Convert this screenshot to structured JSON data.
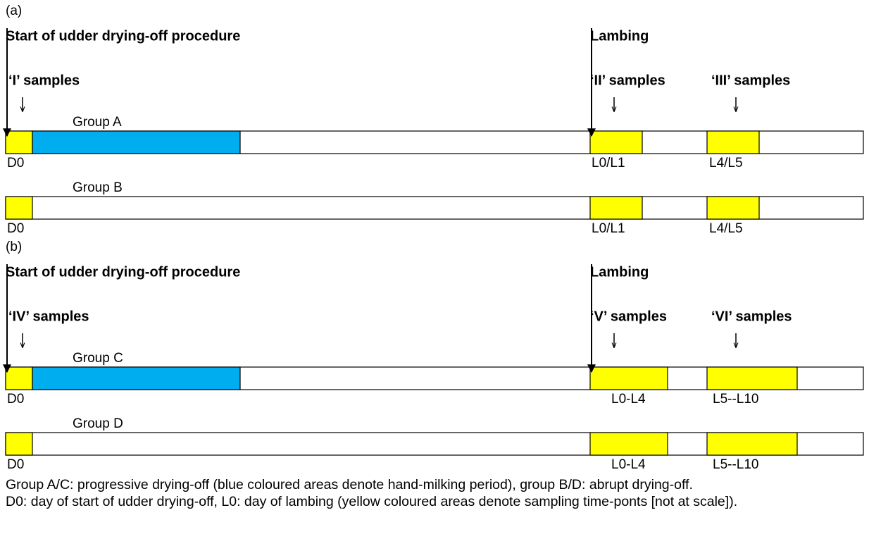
{
  "panels": [
    {
      "label": "(a)",
      "start_label": "Start of udder drying-off procedure",
      "lambing_label": "Lambing",
      "sample_labels": [
        "‘I’ samples",
        "‘II’ samples",
        "‘III’ samples"
      ],
      "groups": [
        {
          "name": "Group A",
          "labels": [
            "D0",
            "L0/L1",
            "L4/L5"
          ]
        },
        {
          "name": "Group B",
          "labels": [
            "D0",
            "L0/L1",
            "L4/L5"
          ]
        }
      ]
    },
    {
      "label": "(b)",
      "start_label": "Start of udder drying-off procedure",
      "lambing_label": "Lambing",
      "sample_labels": [
        "‘IV’ samples",
        "‘V’ samples",
        "‘VI’ samples"
      ],
      "groups": [
        {
          "name": "Group C",
          "labels": [
            "D0",
            "L0-L4",
            "L5--L10"
          ]
        },
        {
          "name": "Group D",
          "labels": [
            "D0",
            "L0-L4",
            "L5--L10"
          ]
        }
      ]
    }
  ],
  "notes": [
    "Group A/C: progressive drying-off (blue coloured areas denote hand-milking period), group B/D: abrupt drying-off.",
    "D0: day of start of udder drying-off, L0: day of lambing (yellow coloured areas denote sampling time-ponts [not at scale])."
  ]
}
